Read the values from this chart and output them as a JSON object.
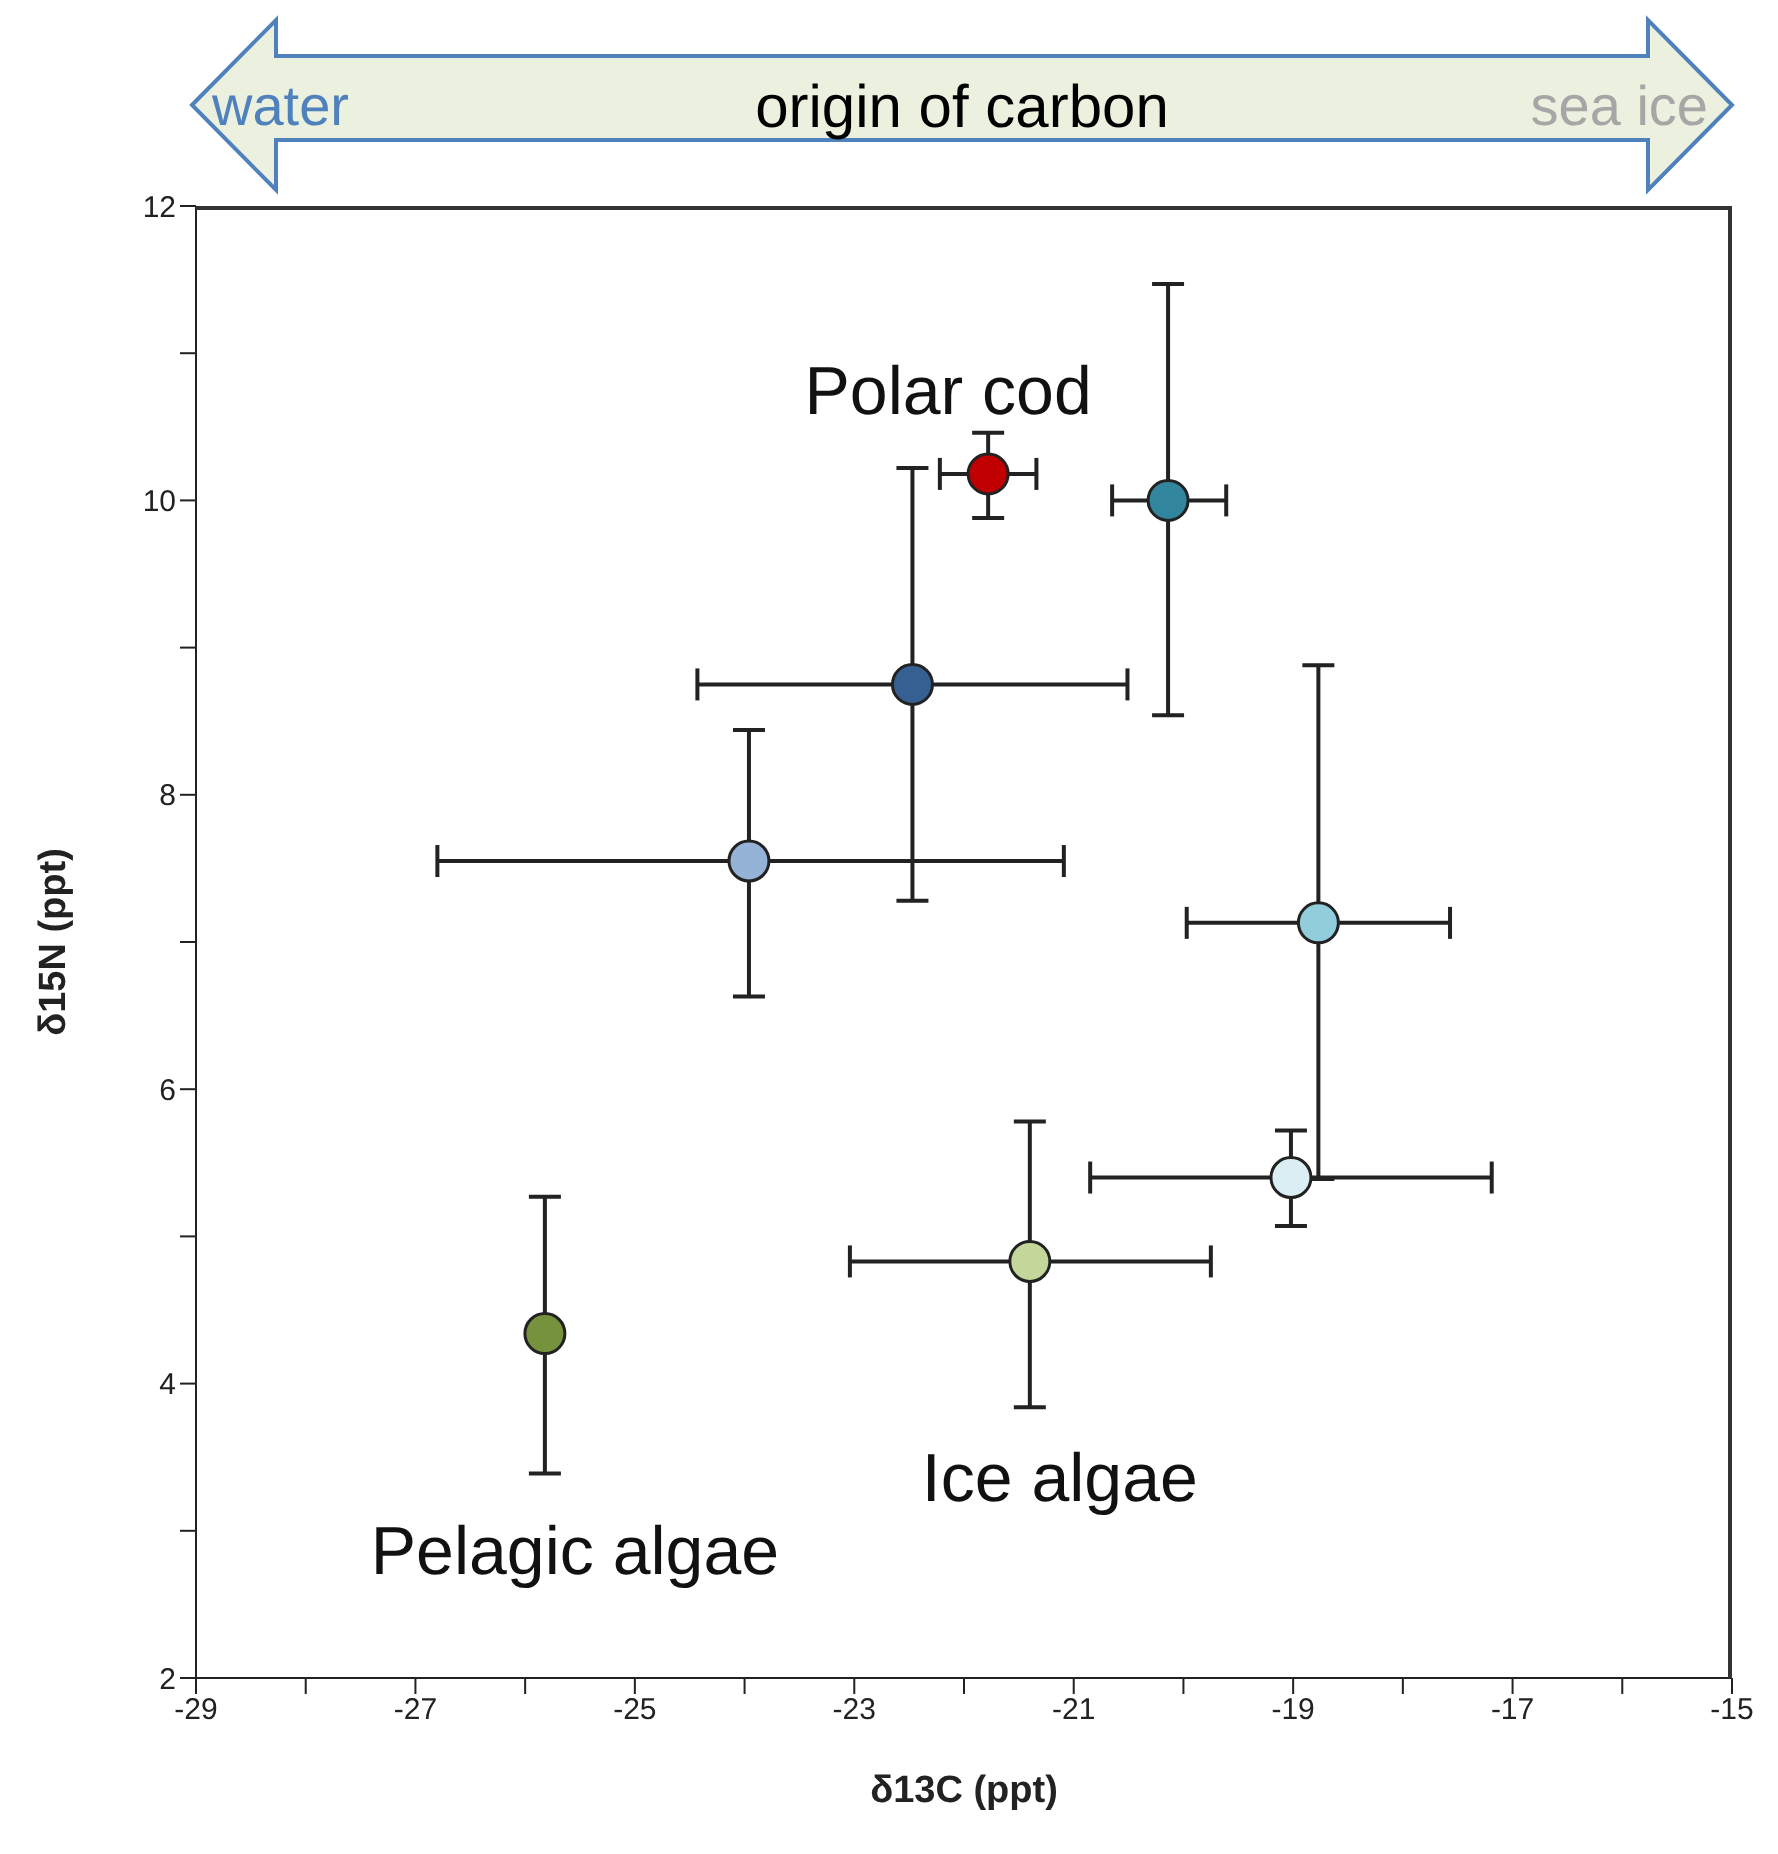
{
  "chart_data": {
    "type": "scatter",
    "title": "origin of carbon",
    "xlabel": "δ13C (ppt)",
    "ylabel": "δ15N (ppt)",
    "x": [
      -25.82,
      -21.4,
      -19.02,
      -18.77,
      -20.14,
      -21.78,
      -22.47,
      -23.96
    ],
    "series": [
      {
        "values": [
          4.34,
          4.83,
          5.4,
          7.13,
          10.0,
          10.18,
          8.75,
          7.55
        ],
        "colors": [
          "#76923c",
          "#c4d79b",
          "#daeef3",
          "#92cddc",
          "#31859c",
          "#c00000",
          "#366092",
          "#95b3d7"
        ],
        "errors": [
          [
            3.39,
            5.27
          ],
          [
            3.84,
            5.78
          ],
          [
            5.07,
            5.72
          ],
          [
            5.39,
            8.88
          ],
          [
            8.54,
            11.47
          ],
          [
            9.88,
            10.46
          ],
          [
            7.28,
            10.22
          ],
          [
            6.63,
            8.44
          ]
        ],
        "xerrors": [
          null,
          [
            -23.04,
            -19.75
          ],
          [
            -20.85,
            -17.19
          ],
          [
            -19.97,
            -17.57
          ],
          [
            -20.65,
            -19.61
          ],
          [
            -22.22,
            -21.34
          ],
          [
            -24.43,
            -20.51
          ],
          [
            -26.8,
            -21.09
          ]
        ]
      }
    ],
    "xlim": [
      -29,
      -15
    ],
    "xticks": [
      -29,
      {
        "value": -28,
        "label": null
      },
      -27,
      {
        "value": -26,
        "label": null
      },
      -25,
      {
        "value": -24,
        "label": null
      },
      -23,
      {
        "value": -22,
        "label": null
      },
      -21,
      {
        "value": -20,
        "label": null
      },
      -19,
      {
        "value": -18,
        "label": null
      },
      -17,
      {
        "value": -16,
        "label": null
      },
      -15
    ],
    "ylim": [
      2,
      12
    ],
    "yticks": [
      2,
      {
        "value": 3,
        "label": null
      },
      4,
      {
        "value": 5,
        "label": null
      },
      6,
      {
        "value": 7,
        "label": null
      },
      8,
      {
        "value": 9,
        "label": null
      },
      10,
      {
        "value": 11,
        "label": null
      },
      12
    ],
    "annotations": [
      "water",
      "sea ice",
      {
        "text": "Polar cod",
        "x": -21.78,
        "y": 10.18
      },
      {
        "text": "Pelagic algae",
        "x": -25.82,
        "y": 4.34
      },
      {
        "text": "Ice algae",
        "x": -21.4,
        "y": 4.83
      }
    ],
    "grid": false,
    "legend": false,
    "marker": "circle"
  }
}
